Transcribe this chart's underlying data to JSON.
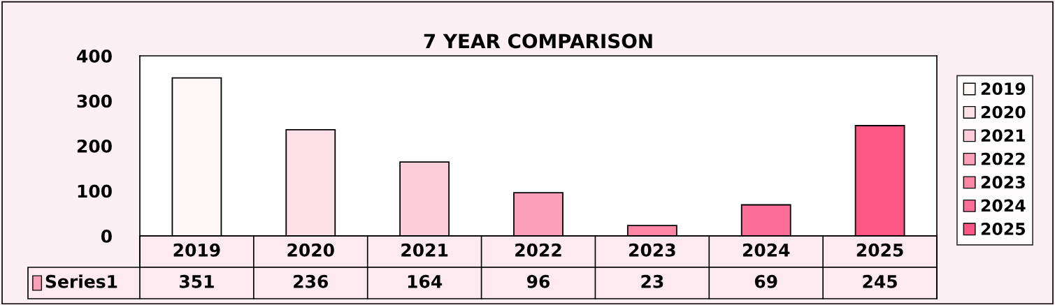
{
  "chart_data": {
    "type": "bar",
    "title": "7 YEAR COMPARISON",
    "categories": [
      "2019",
      "2020",
      "2021",
      "2022",
      "2023",
      "2024",
      "2025"
    ],
    "series": [
      {
        "name": "Series1",
        "color": "#fca0ba",
        "colors": [
          "#fff6f8",
          "#fde0e8",
          "#fdcddc",
          "#fca0ba",
          "#fd86a5",
          "#fd6e98",
          "#fc5685"
        ],
        "values": [
          351,
          236,
          164,
          96,
          23,
          69,
          245
        ]
      }
    ],
    "ylim": [
      0,
      400
    ],
    "yticks": [
      0,
      100,
      200,
      300,
      400
    ],
    "grid": false,
    "legend": "bottom left",
    "data_labels": true
  }
}
